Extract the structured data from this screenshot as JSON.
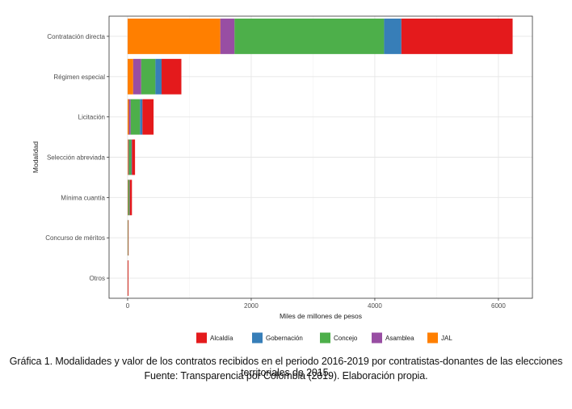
{
  "chart_data": {
    "type": "bar",
    "orientation": "horizontal",
    "stacked": true,
    "categories": [
      "Contratación directa",
      "Régimen especial",
      "Licitación",
      "Selección abreviada",
      "Mínima cuantía",
      "Concurso de méritos",
      "Otros"
    ],
    "stack_order": [
      "JAL",
      "Asamblea",
      "Concejo",
      "Gobernación",
      "Alcaldía"
    ],
    "series": [
      {
        "name": "JAL",
        "color": "#ff7f00",
        "values": [
          1500,
          90,
          20,
          10,
          5,
          0,
          0
        ]
      },
      {
        "name": "Asamblea",
        "color": "#984ea3",
        "values": [
          230,
          130,
          30,
          10,
          5,
          0,
          0
        ]
      },
      {
        "name": "Concejo",
        "color": "#4daf4a",
        "values": [
          2420,
          230,
          150,
          40,
          20,
          8,
          2
        ]
      },
      {
        "name": "Gobernación",
        "color": "#377eb8",
        "values": [
          280,
          100,
          40,
          10,
          5,
          0,
          0
        ]
      },
      {
        "name": "Alcaldía",
        "color": "#e41a1c",
        "values": [
          1800,
          320,
          180,
          50,
          35,
          3,
          12
        ]
      }
    ],
    "xlabel": "Miles de millones de pesos",
    "ylabel": "Modalidad",
    "xlim": [
      -300,
      6550
    ],
    "xticks": [
      0,
      2000,
      4000,
      6000
    ],
    "xtick_labels": [
      "0",
      "2000",
      "4000",
      "6000"
    ],
    "grid": true,
    "legend_position": "bottom",
    "legend_order": [
      "Alcaldía",
      "Gobernación",
      "Concejo",
      "Asamblea",
      "JAL"
    ]
  },
  "caption": {
    "line1": "Gráfica 1. Modalidades y valor de los contratos recibidos en el periodo 2016-2019 por contratistas-donantes de las elecciones territoriales de 2015.",
    "line2": "Fuente: Transparencia por Colombia (2019). Elaboración propia."
  }
}
